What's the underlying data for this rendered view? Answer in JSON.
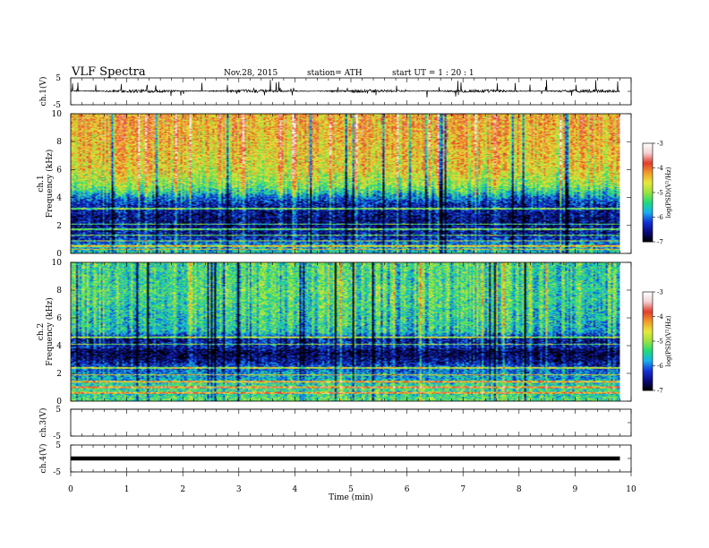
{
  "header": {
    "title": "VLF  Spectra",
    "date": "Nov.28, 2015",
    "station": "station= ATH",
    "start": "start  UT  =   1  : 20 : 1"
  },
  "chart_data": [
    {
      "type": "line",
      "panel": "ch1-waveform",
      "ylabel": "ch.1(V)",
      "ylim": [
        -5,
        5
      ],
      "yticks": [
        "5",
        "-5"
      ],
      "x": [
        0,
        1,
        2,
        3,
        4,
        5,
        6,
        7,
        8,
        9,
        9.8
      ],
      "baseline": 0.1,
      "noise_amplitude": 0.6,
      "spike_amplitude": 1.6,
      "xlim": [
        0,
        10
      ]
    },
    {
      "type": "heatmap",
      "panel": "ch1-spectrogram",
      "ylabel_top": "ch.1",
      "ylabel": "Frequency  (kHz)",
      "ylim": [
        0,
        10
      ],
      "yticks": [
        "0",
        "2",
        "4",
        "6",
        "8",
        "10"
      ],
      "xlim": [
        0,
        10
      ],
      "data_xmax": 9.8,
      "colorbar_label": "log(PSD)(V²/Hz)",
      "colorbar_range": [
        -7,
        -3
      ],
      "colorbar_ticks": [
        "-3",
        "-4",
        "-5",
        "-6",
        "-7"
      ],
      "mean_log_psd_profile": {
        "freq_khz": [
          0,
          0.5,
          1,
          1.5,
          2,
          2.5,
          3,
          3.5,
          4,
          4.5,
          5,
          6,
          7,
          8,
          9,
          10
        ],
        "log_psd": [
          -5.6,
          -5.8,
          -6.3,
          -6.5,
          -6.6,
          -6.6,
          -6.5,
          -6.4,
          -6.0,
          -5.4,
          -5.0,
          -4.6,
          -4.5,
          -4.4,
          -4.3,
          -4.3
        ]
      },
      "line_tones_khz": [
        0.3,
        0.55,
        0.9,
        1.3,
        1.75,
        2.1,
        3.2
      ]
    },
    {
      "type": "heatmap",
      "panel": "ch2-spectrogram",
      "ylabel_top": "ch.2",
      "ylabel": "Frequency  (kHz)",
      "ylim": [
        0,
        10
      ],
      "yticks": [
        "0",
        "2",
        "4",
        "6",
        "8",
        "10"
      ],
      "xlim": [
        0,
        10
      ],
      "data_xmax": 9.8,
      "colorbar_label": "log(PSD)(V²/Hz)",
      "colorbar_range": [
        -7,
        -3
      ],
      "colorbar_ticks": [
        "-3",
        "-4",
        "-5",
        "-6",
        "-7"
      ],
      "mean_log_psd_profile": {
        "freq_khz": [
          0,
          0.5,
          1,
          1.5,
          2,
          2.5,
          3,
          3.5,
          4,
          4.5,
          5,
          6,
          7,
          8,
          9,
          10
        ],
        "log_psd": [
          -5.2,
          -5.5,
          -5.3,
          -5.7,
          -5.9,
          -6.2,
          -6.6,
          -6.8,
          -6.3,
          -6.5,
          -5.6,
          -5.5,
          -5.4,
          -5.3,
          -5.4,
          -5.3
        ]
      },
      "line_tones_khz": [
        0.6,
        1.0,
        1.4,
        1.9,
        2.4,
        4.1,
        4.6
      ]
    },
    {
      "type": "line",
      "panel": "ch3-waveform",
      "ylabel": "ch.3(V)",
      "ylim": [
        -5,
        5
      ],
      "yticks": [
        "5",
        "-5"
      ],
      "x": [
        0,
        9.8
      ],
      "y": [
        5,
        5
      ],
      "xlim": [
        0,
        10
      ]
    },
    {
      "type": "line",
      "panel": "ch4-waveform",
      "ylabel": "ch.4(V)",
      "ylim": [
        -5,
        5
      ],
      "yticks": [
        "5",
        "-5"
      ],
      "x": [
        0,
        9.8
      ],
      "y": [
        0,
        0
      ],
      "xlim": [
        0,
        10
      ],
      "xlabel": "Time  (min)",
      "xticks": [
        "0",
        "1",
        "2",
        "3",
        "4",
        "5",
        "6",
        "7",
        "8",
        "9",
        "10"
      ]
    }
  ],
  "colormap": [
    "#000000",
    "#0b0a80",
    "#1433d8",
    "#16b2ef",
    "#1fdc78",
    "#9ce23c",
    "#e8e83a",
    "#f29a2a",
    "#e23b2d",
    "#f2d2d2",
    "#ffffff"
  ]
}
